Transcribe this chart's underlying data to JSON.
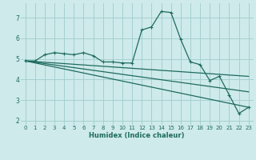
{
  "xlabel": "Humidex (Indice chaleur)",
  "background_color": "#ceeaea",
  "grid_color": "#a0cccc",
  "line_color": "#1e6b5e",
  "xlim": [
    -0.5,
    23.5
  ],
  "ylim": [
    1.8,
    7.7
  ],
  "yticks": [
    2,
    3,
    4,
    5,
    6,
    7
  ],
  "xticks": [
    0,
    1,
    2,
    3,
    4,
    5,
    6,
    7,
    8,
    9,
    10,
    11,
    12,
    13,
    14,
    15,
    16,
    17,
    18,
    19,
    20,
    21,
    22,
    23
  ],
  "series1_x": [
    0,
    1,
    2,
    3,
    4,
    5,
    6,
    7,
    8,
    9,
    10,
    11,
    12,
    13,
    14,
    15,
    16,
    17,
    18,
    19,
    20,
    21,
    22,
    23
  ],
  "series1_y": [
    4.9,
    4.9,
    5.2,
    5.3,
    5.25,
    5.2,
    5.3,
    5.15,
    4.85,
    4.85,
    4.8,
    4.8,
    6.4,
    6.55,
    7.3,
    7.25,
    5.95,
    4.85,
    4.72,
    3.95,
    4.15,
    3.25,
    2.35,
    2.65
  ],
  "series2_x": [
    0,
    23
  ],
  "series2_y": [
    4.9,
    2.65
  ],
  "series3_x": [
    0,
    23
  ],
  "series3_y": [
    4.9,
    4.15
  ],
  "series4_x": [
    0,
    23
  ],
  "series4_y": [
    4.9,
    3.4
  ],
  "ylabel_fontsize": 5.5,
  "xlabel_fontsize": 6.0,
  "tick_fontsize": 5.0,
  "linewidth": 0.9
}
